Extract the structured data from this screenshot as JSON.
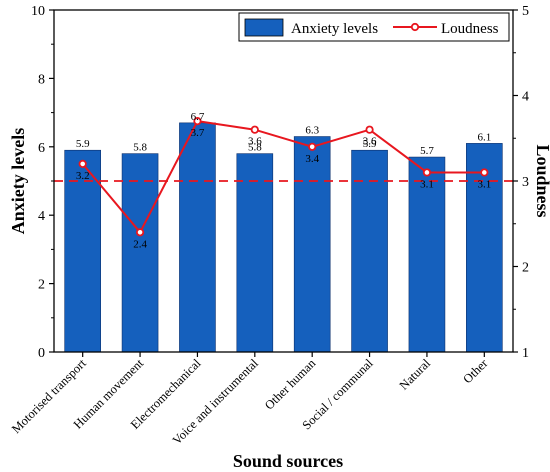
{
  "chart_data": {
    "type": "bar+line",
    "categories": [
      "Motorised transport",
      "Human movement",
      "Electromechanical",
      "Voice and instrumental",
      "Other human",
      "Social / communal",
      "Natural",
      "Other"
    ],
    "series": [
      {
        "name": "Anxiety levels",
        "type": "bar",
        "axis": "left",
        "color": "#1560bd",
        "values": [
          5.9,
          5.8,
          6.7,
          5.8,
          6.3,
          5.9,
          5.7,
          6.1
        ]
      },
      {
        "name": "Loudness",
        "type": "line",
        "axis": "right",
        "color": "#e8171f",
        "values": [
          3.2,
          2.4,
          3.7,
          3.6,
          3.4,
          3.6,
          3.1,
          3.1
        ]
      }
    ],
    "xlabel": "Sound sources",
    "ylabel": "Anxiety levels",
    "y2label": "Loudness",
    "ylim": [
      0,
      10
    ],
    "y2lim": [
      1,
      5
    ],
    "yticks": [
      "0",
      "2",
      "4",
      "6",
      "8",
      "10"
    ],
    "y2ticks": [
      "1",
      "2",
      "3",
      "4",
      "5"
    ],
    "reference_line": {
      "axis": "right",
      "value": 3,
      "style": "dashed",
      "color": "#e8171f"
    },
    "legend_position": "top-right",
    "grid": false
  }
}
